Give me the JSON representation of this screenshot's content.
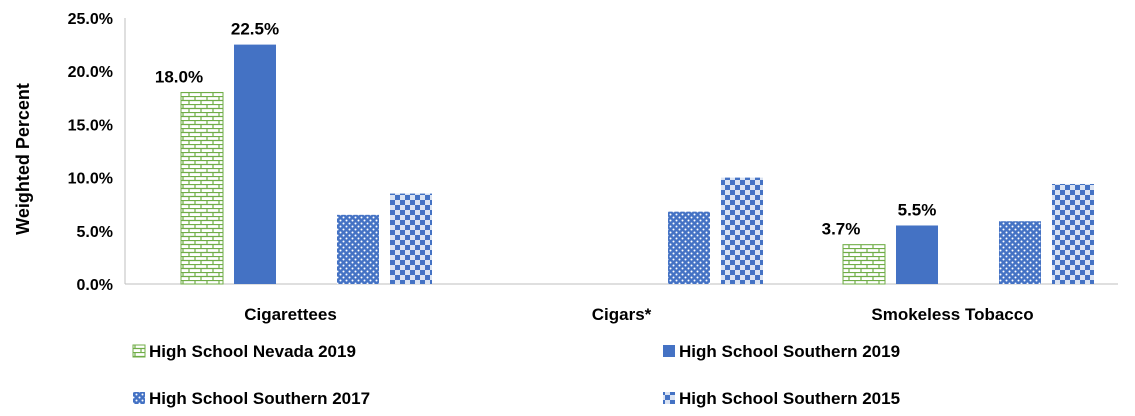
{
  "chart_data": {
    "type": "bar",
    "ylabel": "Weighted Percent",
    "ylim": [
      0,
      25
    ],
    "yticks": [
      "0.0%",
      "5.0%",
      "10.0%",
      "15.0%",
      "20.0%",
      "25.0%"
    ],
    "grid": false,
    "legend_position": "bottom",
    "categories": [
      "Cigarettees",
      "Cigars*",
      "Smokeless Tobacco"
    ],
    "series": [
      {
        "name": "High School Nevada 2019",
        "values": [
          18.0,
          null,
          3.7
        ],
        "labels": [
          "18.0%",
          "",
          "3.7%"
        ],
        "pattern": "brick",
        "color": "#70ad47"
      },
      {
        "name": "High School Southern 2019",
        "values": [
          22.5,
          null,
          5.5
        ],
        "labels": [
          "22.5%",
          "",
          "5.5%"
        ],
        "pattern": "solid",
        "color": "#4472c4"
      },
      {
        "name": "High School Southern 2017",
        "values": [
          6.5,
          6.8,
          5.9
        ],
        "labels": [
          "",
          "",
          ""
        ],
        "pattern": "dots",
        "color": "#4472c4"
      },
      {
        "name": "High School Southern 2015",
        "values": [
          8.5,
          10.0,
          9.4
        ],
        "labels": [
          "",
          "",
          ""
        ],
        "pattern": "checker",
        "color": "#4472c4"
      }
    ]
  }
}
